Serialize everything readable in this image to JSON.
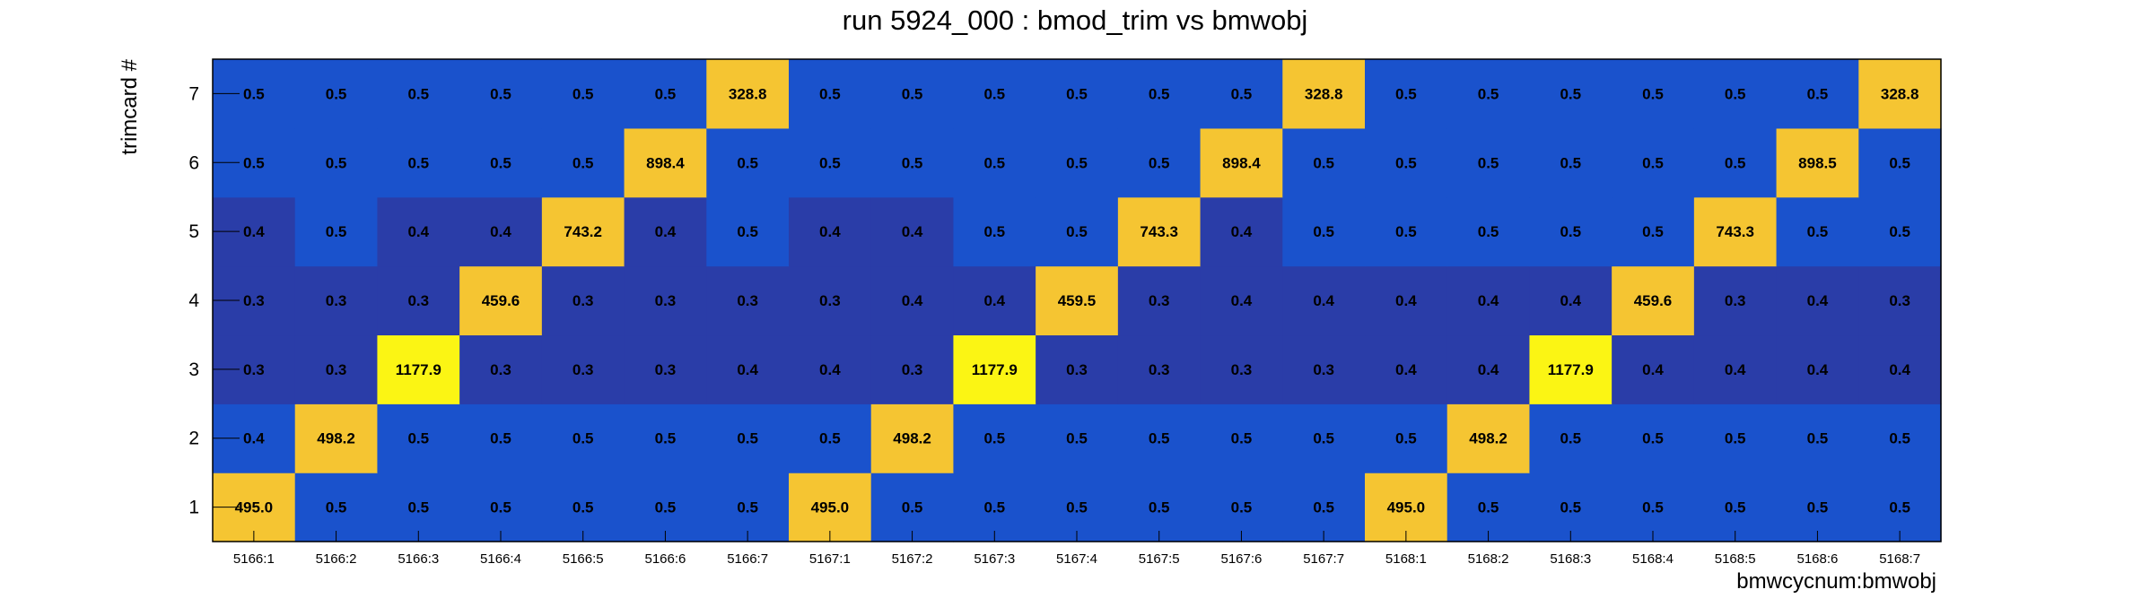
{
  "chart_data": {
    "type": "heatmap",
    "title": "run 5924_000 : bmod_trim vs bmwobj",
    "xlabel": "bmwcycnum:bmwobj",
    "ylabel": "trimcard #",
    "x_categories": [
      "5166:1",
      "5166:2",
      "5166:3",
      "5166:4",
      "5166:5",
      "5166:6",
      "5166:7",
      "5167:1",
      "5167:2",
      "5167:3",
      "5167:4",
      "5167:5",
      "5167:6",
      "5167:7",
      "5168:1",
      "5168:2",
      "5168:3",
      "5168:4",
      "5168:5",
      "5168:6",
      "5168:7"
    ],
    "y_categories": [
      "1",
      "2",
      "3",
      "4",
      "5",
      "6",
      "7"
    ],
    "cell_labels": [
      [
        "495.0",
        "0.5",
        "0.5",
        "0.5",
        "0.5",
        "0.5",
        "0.5",
        "495.0",
        "0.5",
        "0.5",
        "0.5",
        "0.5",
        "0.5",
        "0.5",
        "495.0",
        "0.5",
        "0.5",
        "0.5",
        "0.5",
        "0.5",
        "0.5"
      ],
      [
        "0.4",
        "498.2",
        "0.5",
        "0.5",
        "0.5",
        "0.5",
        "0.5",
        "0.5",
        "498.2",
        "0.5",
        "0.5",
        "0.5",
        "0.5",
        "0.5",
        "0.5",
        "498.2",
        "0.5",
        "0.5",
        "0.5",
        "0.5",
        "0.5"
      ],
      [
        "0.3",
        "0.3",
        "1177.9",
        "0.3",
        "0.3",
        "0.3",
        "0.4",
        "0.4",
        "0.3",
        "1177.9",
        "0.3",
        "0.3",
        "0.3",
        "0.3",
        "0.4",
        "0.4",
        "1177.9",
        "0.4",
        "0.4",
        "0.4",
        "0.4"
      ],
      [
        "0.3",
        "0.3",
        "0.3",
        "459.6",
        "0.3",
        "0.3",
        "0.3",
        "0.3",
        "0.4",
        "0.4",
        "459.5",
        "0.3",
        "0.4",
        "0.4",
        "0.4",
        "0.4",
        "0.4",
        "459.6",
        "0.3",
        "0.4",
        "0.3"
      ],
      [
        "0.4",
        "0.5",
        "0.4",
        "0.4",
        "743.2",
        "0.4",
        "0.5",
        "0.4",
        "0.4",
        "0.5",
        "0.5",
        "743.3",
        "0.4",
        "0.5",
        "0.5",
        "0.5",
        "0.5",
        "0.5",
        "743.3",
        "0.5",
        "0.5"
      ],
      [
        "0.5",
        "0.5",
        "0.5",
        "0.5",
        "0.5",
        "898.4",
        "0.5",
        "0.5",
        "0.5",
        "0.5",
        "0.5",
        "0.5",
        "898.4",
        "0.5",
        "0.5",
        "0.5",
        "0.5",
        "0.5",
        "0.5",
        "898.5",
        "0.5"
      ],
      [
        "0.5",
        "0.5",
        "0.5",
        "0.5",
        "0.5",
        "0.5",
        "328.8",
        "0.5",
        "0.5",
        "0.5",
        "0.5",
        "0.5",
        "0.5",
        "328.8",
        "0.5",
        "0.5",
        "0.5",
        "0.5",
        "0.5",
        "0.5",
        "328.8"
      ]
    ],
    "grid": false,
    "colors": {
      "low_blue": "#1a52cc",
      "darker_blue": "#2a3da8",
      "mid_yellow": "#f5c532",
      "high_yellow": "#fbf514",
      "frame": "#000000"
    }
  }
}
